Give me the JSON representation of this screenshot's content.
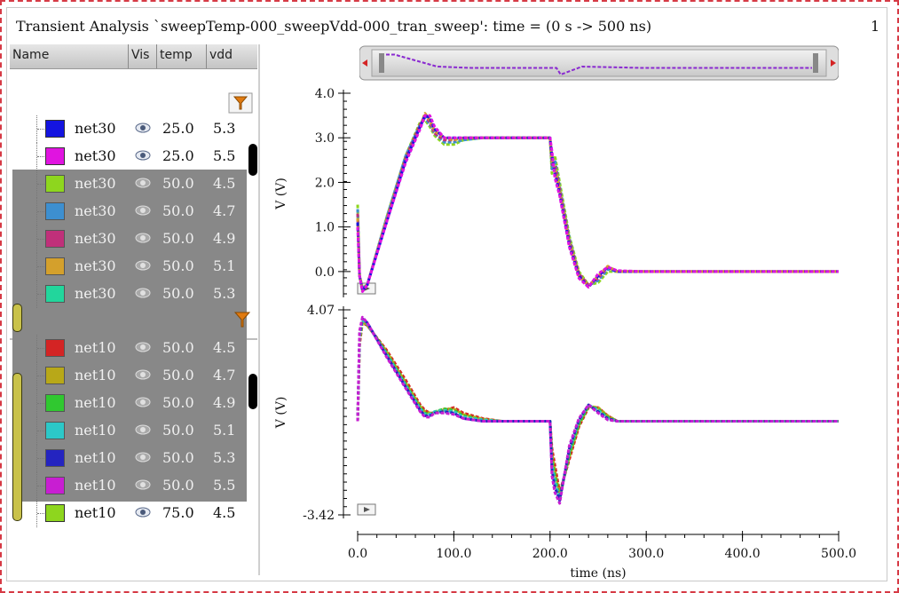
{
  "window": {
    "title": "Transient Analysis `sweepTemp-000_sweepVdd-000_tran_sweep': time = (0 s -> 500 ns)",
    "corner_index": "1"
  },
  "signal_list": {
    "columns": [
      "Name",
      "Vis",
      "temp",
      "vdd"
    ],
    "top_group": [
      {
        "name": "net30",
        "temp": "25.0",
        "vdd": "5.3",
        "color": "#1414e0",
        "selected": false
      },
      {
        "name": "net30",
        "temp": "25.0",
        "vdd": "5.5",
        "color": "#e014e0",
        "selected": false
      },
      {
        "name": "net30",
        "temp": "50.0",
        "vdd": "4.5",
        "color": "#8ed61e",
        "selected": true
      },
      {
        "name": "net30",
        "temp": "50.0",
        "vdd": "4.7",
        "color": "#3d8fd0",
        "selected": true
      },
      {
        "name": "net30",
        "temp": "50.0",
        "vdd": "4.9",
        "color": "#c0307a",
        "selected": true
      },
      {
        "name": "net30",
        "temp": "50.0",
        "vdd": "5.1",
        "color": "#d4a02c",
        "selected": true
      },
      {
        "name": "net30",
        "temp": "50.0",
        "vdd": "5.3",
        "color": "#22d69c",
        "selected": true
      }
    ],
    "bottom_group": [
      {
        "name": "net10",
        "temp": "50.0",
        "vdd": "4.5",
        "color": "#d42424",
        "selected": true
      },
      {
        "name": "net10",
        "temp": "50.0",
        "vdd": "4.7",
        "color": "#b8a818",
        "selected": true
      },
      {
        "name": "net10",
        "temp": "50.0",
        "vdd": "4.9",
        "color": "#30c830",
        "selected": true
      },
      {
        "name": "net10",
        "temp": "50.0",
        "vdd": "5.1",
        "color": "#2cc8c8",
        "selected": true
      },
      {
        "name": "net10",
        "temp": "50.0",
        "vdd": "5.3",
        "color": "#2424c0",
        "selected": true
      },
      {
        "name": "net10",
        "temp": "50.0",
        "vdd": "5.5",
        "color": "#c81ed2",
        "selected": true
      },
      {
        "name": "net10",
        "temp": "75.0",
        "vdd": "4.5",
        "color": "#8ed61e",
        "selected": false
      }
    ]
  },
  "chart_data": [
    {
      "type": "line",
      "title": "",
      "xlabel": "",
      "ylabel": "V (V)",
      "xlim": [
        0,
        500
      ],
      "ylim": [
        -0.5,
        4.0
      ],
      "yticks": [
        "4.0",
        "3.0",
        "2.0",
        "1.0",
        "0.0"
      ],
      "ytick_values": [
        4.0,
        3.0,
        2.0,
        1.0,
        0.0
      ],
      "grid": false,
      "x": [
        0,
        2,
        5,
        10,
        30,
        50,
        65,
        70,
        75,
        80,
        90,
        100,
        110,
        130,
        150,
        200,
        202,
        205,
        210,
        220,
        230,
        240,
        250,
        260,
        270,
        300,
        400,
        500
      ],
      "series": [
        {
          "color": "#8ed61e",
          "values": [
            1.5,
            -0.1,
            -0.35,
            -0.3,
            1.2,
            2.6,
            3.35,
            3.4,
            3.25,
            3.05,
            2.85,
            2.85,
            2.95,
            3.0,
            3.0,
            3.0,
            2.2,
            2.6,
            2.0,
            0.8,
            0.0,
            -0.3,
            -0.25,
            0.0,
            0.0,
            0.0,
            0.0,
            0.0
          ]
        },
        {
          "color": "#3d8fd0",
          "values": [
            1.4,
            -0.1,
            -0.38,
            -0.3,
            1.2,
            2.6,
            3.3,
            3.45,
            3.3,
            3.1,
            2.9,
            2.9,
            2.95,
            3.0,
            3.0,
            3.0,
            2.3,
            2.5,
            1.9,
            0.75,
            -0.05,
            -0.3,
            -0.2,
            0.05,
            0.0,
            0.0,
            0.0,
            0.0
          ]
        },
        {
          "color": "#c0307a",
          "values": [
            1.3,
            -0.1,
            -0.4,
            -0.3,
            1.15,
            2.55,
            3.3,
            3.5,
            3.35,
            3.1,
            2.95,
            2.95,
            3.0,
            3.0,
            3.0,
            3.0,
            2.4,
            2.4,
            1.85,
            0.7,
            -0.05,
            -0.3,
            -0.15,
            0.1,
            0.0,
            0.0,
            0.0,
            0.0
          ]
        },
        {
          "color": "#d4a02c",
          "values": [
            1.2,
            -0.1,
            -0.42,
            -0.3,
            1.15,
            2.5,
            3.25,
            3.55,
            3.4,
            3.15,
            3.0,
            2.95,
            3.0,
            3.0,
            3.0,
            3.0,
            2.5,
            2.3,
            1.8,
            0.65,
            -0.1,
            -0.32,
            -0.1,
            0.12,
            0.0,
            0.0,
            0.0,
            0.0
          ]
        },
        {
          "color": "#1414e0",
          "values": [
            1.1,
            -0.1,
            -0.42,
            -0.3,
            1.1,
            2.5,
            3.25,
            3.5,
            3.45,
            3.2,
            3.0,
            3.0,
            3.0,
            3.0,
            3.0,
            3.0,
            2.6,
            2.2,
            1.75,
            0.6,
            -0.1,
            -0.35,
            -0.1,
            0.1,
            0.0,
            0.0,
            0.0,
            0.0
          ]
        },
        {
          "color": "#e014e0",
          "values": [
            1.0,
            -0.1,
            -0.45,
            -0.3,
            1.1,
            2.45,
            3.2,
            3.5,
            3.5,
            3.25,
            3.0,
            3.0,
            3.0,
            3.0,
            3.0,
            3.0,
            2.7,
            2.1,
            1.7,
            0.55,
            -0.15,
            -0.35,
            -0.05,
            0.1,
            0.02,
            0.0,
            0.0,
            0.0
          ]
        }
      ]
    },
    {
      "type": "line",
      "title": "",
      "xlabel": "time (ns)",
      "ylabel": "V (V)",
      "xlim": [
        0,
        500
      ],
      "ylim": [
        -3.42,
        4.07
      ],
      "yticks": [
        "4.07",
        "-3.42"
      ],
      "ytick_values": [
        4.07,
        -3.42
      ],
      "xticks": [
        "0.0",
        "100.0",
        "200.0",
        "300.0",
        "400.0",
        "500.0"
      ],
      "xtick_values": [
        0,
        100,
        200,
        300,
        400,
        500
      ],
      "grid": false,
      "x": [
        0,
        2,
        5,
        10,
        30,
        50,
        65,
        70,
        75,
        80,
        90,
        100,
        110,
        130,
        150,
        200,
        202,
        205,
        210,
        220,
        230,
        240,
        250,
        260,
        270,
        300,
        400,
        500
      ],
      "series": [
        {
          "color": "#d42424",
          "values": [
            0.0,
            2.8,
            3.6,
            3.5,
            2.6,
            1.5,
            0.6,
            0.4,
            0.3,
            0.3,
            0.4,
            0.5,
            0.3,
            0.1,
            0.0,
            0.0,
            -1.0,
            -1.6,
            -2.6,
            -1.4,
            -0.2,
            0.5,
            0.5,
            0.2,
            0.0,
            0.0,
            0.0,
            0.0
          ]
        },
        {
          "color": "#b8a818",
          "values": [
            0.0,
            2.9,
            3.65,
            3.5,
            2.55,
            1.4,
            0.55,
            0.35,
            0.3,
            0.32,
            0.45,
            0.45,
            0.25,
            0.08,
            0.0,
            0.0,
            -1.2,
            -1.8,
            -2.7,
            -1.3,
            -0.15,
            0.55,
            0.5,
            0.2,
            0.0,
            0.0,
            0.0,
            0.0
          ]
        },
        {
          "color": "#30c830",
          "values": [
            0.0,
            3.0,
            3.7,
            3.55,
            2.5,
            1.35,
            0.5,
            0.3,
            0.25,
            0.35,
            0.45,
            0.4,
            0.2,
            0.05,
            0.0,
            0.0,
            -1.4,
            -2.0,
            -2.8,
            -1.2,
            -0.1,
            0.55,
            0.45,
            0.15,
            0.0,
            0.0,
            0.0,
            0.0
          ]
        },
        {
          "color": "#2cc8c8",
          "values": [
            0.0,
            3.1,
            3.7,
            3.55,
            2.45,
            1.3,
            0.45,
            0.25,
            0.25,
            0.35,
            0.4,
            0.35,
            0.15,
            0.05,
            0.0,
            0.0,
            -1.6,
            -2.2,
            -2.85,
            -1.1,
            0.0,
            0.6,
            0.4,
            0.1,
            0.0,
            0.0,
            0.0,
            0.0
          ]
        },
        {
          "color": "#2424c0",
          "values": [
            0.0,
            3.2,
            3.75,
            3.6,
            2.4,
            1.25,
            0.4,
            0.2,
            0.2,
            0.3,
            0.35,
            0.3,
            0.1,
            0.0,
            0.0,
            0.0,
            -1.8,
            -2.4,
            -2.9,
            -1.0,
            0.05,
            0.6,
            0.35,
            0.1,
            0.0,
            0.0,
            0.0,
            0.0
          ]
        },
        {
          "color": "#c81ed2",
          "values": [
            0.0,
            3.3,
            3.8,
            3.6,
            2.35,
            1.2,
            0.35,
            0.15,
            0.15,
            0.3,
            0.3,
            0.25,
            0.1,
            0.0,
            0.0,
            0.0,
            -2.0,
            -2.6,
            -3.0,
            -0.9,
            0.1,
            0.6,
            0.3,
            0.05,
            0.0,
            0.0,
            0.0,
            0.0
          ]
        }
      ]
    }
  ],
  "overview": {
    "x": [
      0,
      10,
      60,
      100,
      200,
      205,
      230,
      300,
      500
    ],
    "y": [
      3.0,
      3.0,
      1.2,
      1.0,
      1.0,
      0.0,
      1.2,
      1.0,
      1.0
    ]
  }
}
